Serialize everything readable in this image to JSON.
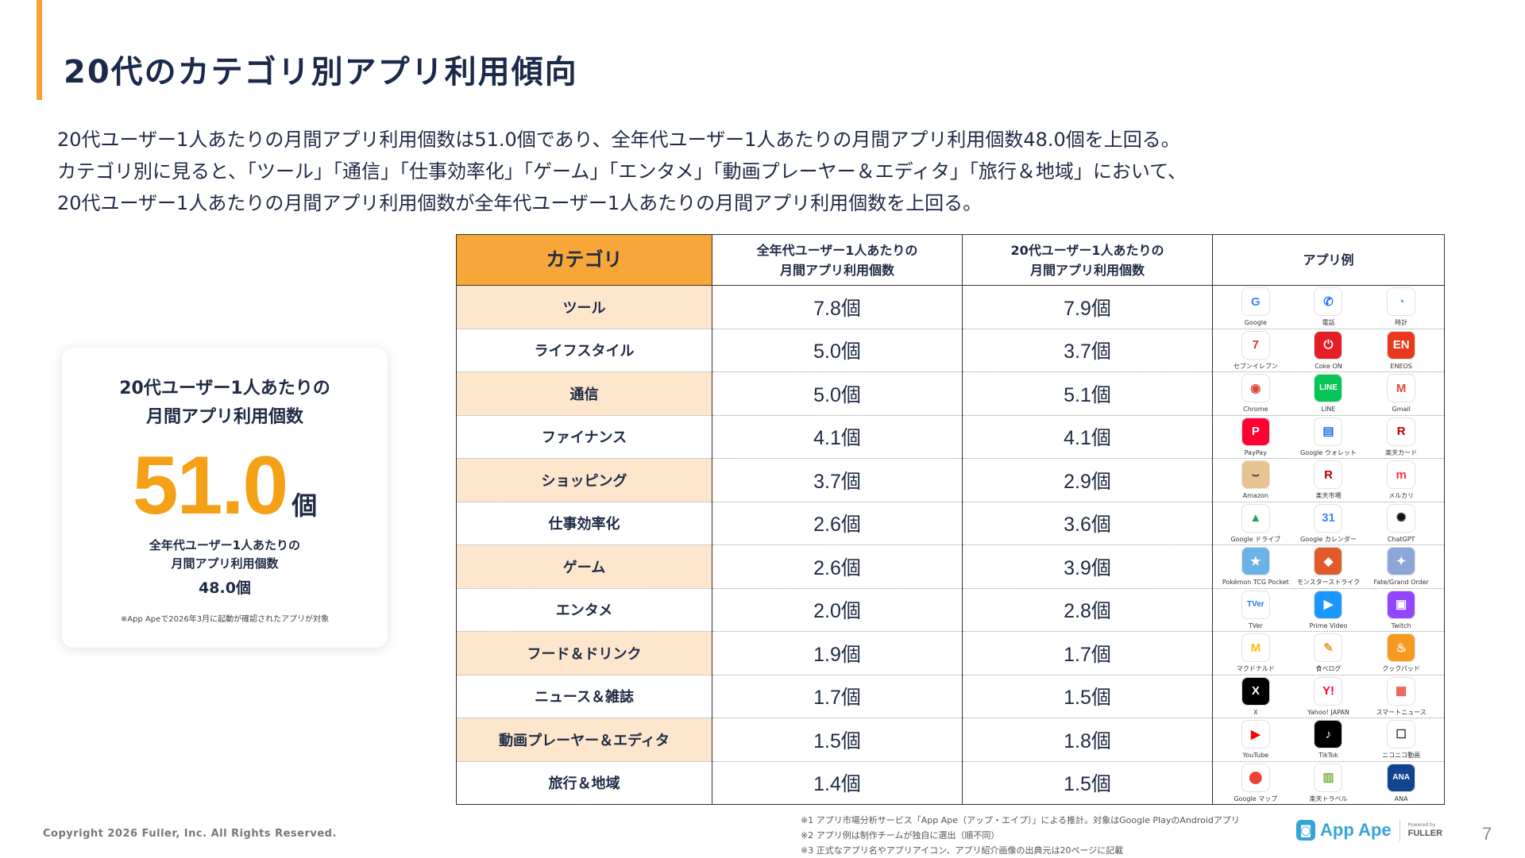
{
  "title": "20代のカテゴリ別アプリ利用傾向",
  "intro": [
    "20代ユーザー1人あたりの月間アプリ利用個数は51.0個であり、全年代ユーザー1人あたりの月間アプリ利用個数48.0個を上回る。",
    "カテゴリ別に見ると、「ツール」「通信」「仕事効率化」「ゲーム」「エンタメ」「動画プレーヤー＆エディタ」「旅行＆地域」において、",
    "20代ユーザー1人あたりの月間アプリ利用個数が全年代ユーザー1人あたりの月間アプリ利用個数を上回る。"
  ],
  "summary": {
    "heading_line1": "20代ユーザー1人あたりの",
    "heading_line2": "月間アプリ利用個数",
    "value": "51.0",
    "unit": "個",
    "sub_line1": "全年代ユーザー1人あたりの",
    "sub_line2": "月間アプリ利用個数",
    "sub_value": "48.0個",
    "note": "※App Apeで2026年3月に起動が確認されたアプリが対象"
  },
  "table": {
    "headers": {
      "category": "カテゴリ",
      "all_line1": "全年代ユーザー1人あたりの",
      "all_line2": "月間アプリ利用個数",
      "twenties_line1": "20代ユーザー1人あたりの",
      "twenties_line2": "月間アプリ利用個数",
      "apps": "アプリ例"
    },
    "rows": [
      {
        "category": "ツール",
        "all": "7.8個",
        "twenties": "7.9個",
        "apps": [
          {
            "name": "Google",
            "icon": "google-icon",
            "glyph": "G",
            "bg": "#ffffff",
            "fg": "#4285f4"
          },
          {
            "name": "電話",
            "icon": "phone-icon",
            "glyph": "✆",
            "bg": "#ffffff",
            "fg": "#1a73e8"
          },
          {
            "name": "時計",
            "icon": "clock-icon",
            "glyph": "◔",
            "bg": "#ffffff",
            "fg": "#4a8cf0"
          }
        ]
      },
      {
        "category": "ライフスタイル",
        "all": "5.0個",
        "twenties": "3.7個",
        "apps": [
          {
            "name": "セブンイレブン",
            "icon": "seven-eleven-icon",
            "glyph": "7",
            "bg": "#ffffff",
            "fg": "#e0301e"
          },
          {
            "name": "Coke ON",
            "icon": "coke-on-icon",
            "glyph": "⏻",
            "bg": "#e41e26",
            "fg": "#ffffff"
          },
          {
            "name": "ENEOS",
            "icon": "eneos-icon",
            "glyph": "EN",
            "bg": "#e8381d",
            "fg": "#ffffff"
          }
        ]
      },
      {
        "category": "通信",
        "all": "5.0個",
        "twenties": "5.1個",
        "apps": [
          {
            "name": "Chrome",
            "icon": "chrome-icon",
            "glyph": "◉",
            "bg": "#ffffff",
            "fg": "#db4437"
          },
          {
            "name": "LINE",
            "icon": "line-icon",
            "glyph": "LINE",
            "bg": "#06c755",
            "fg": "#ffffff"
          },
          {
            "name": "Gmail",
            "icon": "gmail-icon",
            "glyph": "M",
            "bg": "#ffffff",
            "fg": "#ea4335"
          }
        ]
      },
      {
        "category": "ファイナンス",
        "all": "4.1個",
        "twenties": "4.1個",
        "apps": [
          {
            "name": "PayPay",
            "icon": "paypay-icon",
            "glyph": "P",
            "bg": "#ff0033",
            "fg": "#ffffff"
          },
          {
            "name": "Google ウォレット",
            "icon": "google-wallet-icon",
            "glyph": "▤",
            "bg": "#ffffff",
            "fg": "#1a73e8"
          },
          {
            "name": "楽天カード",
            "icon": "rakuten-card-icon",
            "glyph": "R",
            "bg": "#ffffff",
            "fg": "#bf0000"
          }
        ]
      },
      {
        "category": "ショッピング",
        "all": "3.7個",
        "twenties": "2.9個",
        "apps": [
          {
            "name": "Amazon",
            "icon": "amazon-icon",
            "glyph": "⌣",
            "bg": "#e7c48f",
            "fg": "#232f3e"
          },
          {
            "name": "楽天市場",
            "icon": "rakuten-ichiba-icon",
            "glyph": "R",
            "bg": "#ffffff",
            "fg": "#bf0000"
          },
          {
            "name": "メルカリ",
            "icon": "mercari-icon",
            "glyph": "m",
            "bg": "#ffffff",
            "fg": "#ff333f"
          }
        ]
      },
      {
        "category": "仕事効率化",
        "all": "2.6個",
        "twenties": "3.6個",
        "apps": [
          {
            "name": "Google ドライブ",
            "icon": "google-drive-icon",
            "glyph": "▲",
            "bg": "#ffffff",
            "fg": "#1fa463"
          },
          {
            "name": "Google カレンダー",
            "icon": "google-calendar-icon",
            "glyph": "31",
            "bg": "#ffffff",
            "fg": "#4285f4"
          },
          {
            "name": "ChatGPT",
            "icon": "chatgpt-icon",
            "glyph": "✺",
            "bg": "#ffffff",
            "fg": "#111111"
          }
        ]
      },
      {
        "category": "ゲーム",
        "all": "2.6個",
        "twenties": "3.9個",
        "apps": [
          {
            "name": "Pokémon TCG Pocket",
            "icon": "pokemon-tcg-pocket-icon",
            "glyph": "★",
            "bg": "#6bb3e6",
            "fg": "#ffffff"
          },
          {
            "name": "モンスターストライク",
            "icon": "monster-strike-icon",
            "glyph": "◆",
            "bg": "#e35a2a",
            "fg": "#ffffff"
          },
          {
            "name": "Fate/Grand Order",
            "icon": "fate-grand-order-icon",
            "glyph": "✦",
            "bg": "#8da6d8",
            "fg": "#ffffff"
          }
        ]
      },
      {
        "category": "エンタメ",
        "all": "2.0個",
        "twenties": "2.8個",
        "apps": [
          {
            "name": "TVer",
            "icon": "tver-icon",
            "glyph": "TVer",
            "bg": "#ffffff",
            "fg": "#1b7fd8"
          },
          {
            "name": "Prime Video",
            "icon": "prime-video-icon",
            "glyph": "▶",
            "bg": "#1a98ff",
            "fg": "#ffffff"
          },
          {
            "name": "Twitch",
            "icon": "twitch-icon",
            "glyph": "▣",
            "bg": "#9146ff",
            "fg": "#ffffff"
          }
        ]
      },
      {
        "category": "フード＆ドリンク",
        "all": "1.9個",
        "twenties": "1.7個",
        "apps": [
          {
            "name": "マクドナルド",
            "icon": "mcdonalds-icon",
            "glyph": "M",
            "bg": "#ffffff",
            "fg": "#ffbc0d"
          },
          {
            "name": "食べログ",
            "icon": "tabelog-icon",
            "glyph": "✎",
            "bg": "#ffffff",
            "fg": "#e9a13b"
          },
          {
            "name": "クックパッド",
            "icon": "cookpad-icon",
            "glyph": "♨",
            "bg": "#f59a1f",
            "fg": "#ffffff"
          }
        ]
      },
      {
        "category": "ニュース＆雑誌",
        "all": "1.7個",
        "twenties": "1.5個",
        "apps": [
          {
            "name": "X",
            "icon": "x-icon",
            "glyph": "X",
            "bg": "#000000",
            "fg": "#ffffff"
          },
          {
            "name": "Yahoo! JAPAN",
            "icon": "yahoo-japan-icon",
            "glyph": "Y!",
            "bg": "#ffffff",
            "fg": "#ff0033"
          },
          {
            "name": "スマートニュース",
            "icon": "smartnews-icon",
            "glyph": "▦",
            "bg": "#ffffff",
            "fg": "#e9574c"
          }
        ]
      },
      {
        "category": "動画プレーヤー＆エディタ",
        "all": "1.5個",
        "twenties": "1.8個",
        "apps": [
          {
            "name": "YouTube",
            "icon": "youtube-icon",
            "glyph": "▶",
            "bg": "#ffffff",
            "fg": "#ff0000"
          },
          {
            "name": "TikTok",
            "icon": "tiktok-icon",
            "glyph": "♪",
            "bg": "#000000",
            "fg": "#ffffff"
          },
          {
            "name": "ニコニコ動画",
            "icon": "niconico-icon",
            "glyph": "☐",
            "bg": "#ffffff",
            "fg": "#333333"
          }
        ]
      },
      {
        "category": "旅行＆地域",
        "all": "1.4個",
        "twenties": "1.5個",
        "apps": [
          {
            "name": "Google マップ",
            "icon": "google-maps-icon",
            "glyph": "⬤",
            "bg": "#ffffff",
            "fg": "#ea4335"
          },
          {
            "name": "楽天トラベル",
            "icon": "rakuten-travel-icon",
            "glyph": "▥",
            "bg": "#ffffff",
            "fg": "#7cb342"
          },
          {
            "name": "ANA",
            "icon": "ana-icon",
            "glyph": "ANA",
            "bg": "#13448f",
            "fg": "#ffffff"
          }
        ]
      }
    ]
  },
  "footer": {
    "copyright": "Copyright 2026 Fuller, Inc. All Rights Reserved.",
    "notes": [
      "※1 アプリ市場分析サービス「App Ape（アップ・エイプ）」による推計。対象はGoogle PlayのAndroidアプリ",
      "※2 アプリ例は制作チームが独自に選出（順不同）",
      "※3 正式なアプリ名やアプリアイコン、アプリ紹介画像の出典元は20ページに記載"
    ],
    "logo_text": "App Ape",
    "powered_by": "Powered by",
    "fuller": "FULLER",
    "page_number": "7"
  },
  "colors": {
    "accent": "#f5a232",
    "header_fill": "#f7a63a",
    "alt_row_fill": "#fde6cc",
    "big_number": "#f5a118",
    "text": "#1f2a44"
  }
}
